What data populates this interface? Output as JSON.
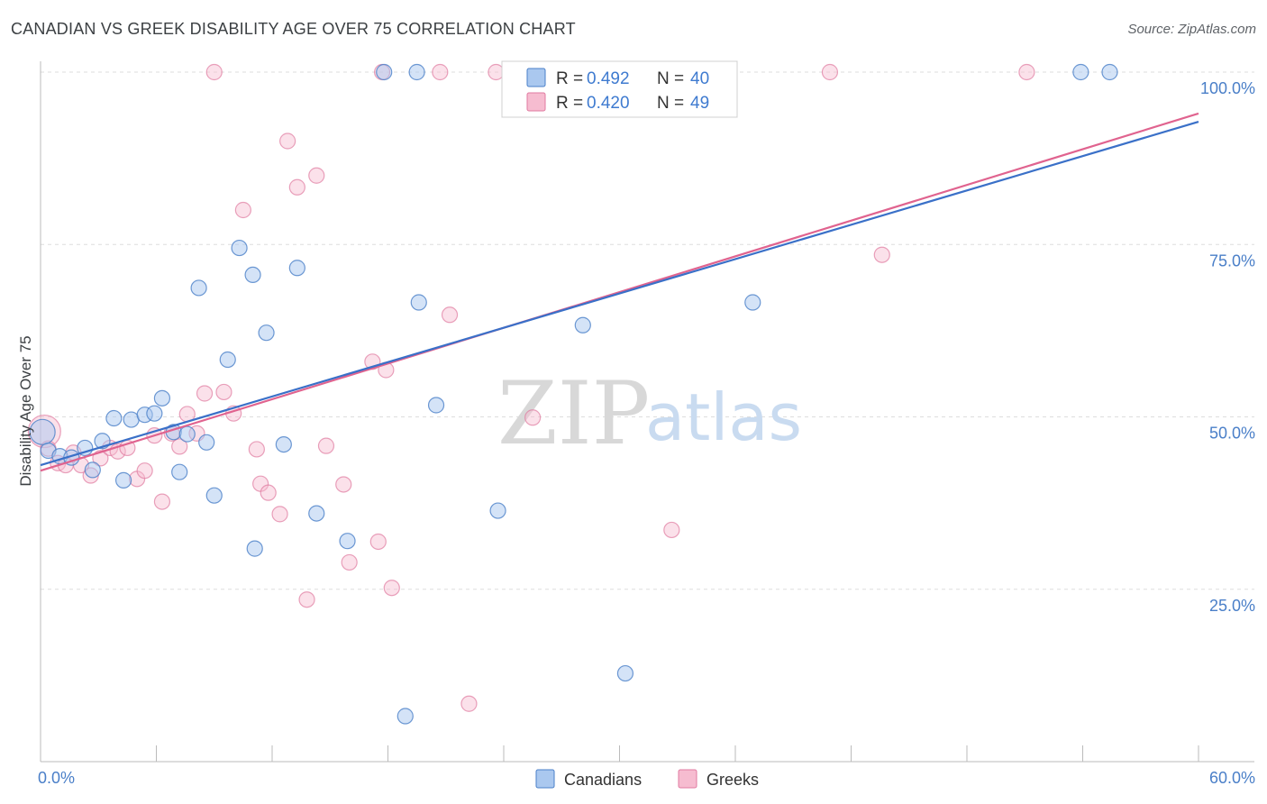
{
  "header": {
    "title": "CANADIAN VS GREEK DISABILITY AGE OVER 75 CORRELATION CHART",
    "source": "Source: ZipAtlas.com"
  },
  "watermark": {
    "zip": "ZIP",
    "atlas": "atlas"
  },
  "legend": {
    "r_label": "R =",
    "n_label": "N =",
    "canadians": {
      "r": "0.492",
      "n": "40"
    },
    "greeks": {
      "r": "0.420",
      "n": "49"
    }
  },
  "colors": {
    "canadians_fill": "#aac8ef",
    "canadians_stroke": "#4a7fc8",
    "canadians_line": "#3a70c8",
    "greeks_fill": "#f6bcd0",
    "greeks_stroke": "#e07aa0",
    "greeks_line": "#e0638f",
    "grid": "#dddddd",
    "tick_label": "#4a7fc8"
  },
  "chart_data": {
    "type": "scatter",
    "title": "CANADIAN VS GREEK DISABILITY AGE OVER 75 CORRELATION CHART",
    "xlabel": "",
    "ylabel": "Disability Age Over 75",
    "xlim": [
      0,
      60
    ],
    "ylim": [
      0,
      100
    ],
    "x_tick_labels": [
      "0.0%",
      "60.0%"
    ],
    "y_ticks": [
      25,
      50,
      75,
      100
    ],
    "y_tick_labels": [
      "25.0%",
      "50.0%",
      "75.0%",
      "100.0%"
    ],
    "grid": true,
    "legend_position": "top-center",
    "series": [
      {
        "name": "Canadians",
        "r": 0.492,
        "n": 40,
        "trend": [
          [
            0,
            43.0
          ],
          [
            60,
            92.8
          ]
        ],
        "points": [
          [
            0.1,
            47.8
          ],
          [
            0.4,
            45.1
          ],
          [
            1.0,
            44.3
          ],
          [
            1.6,
            44.1
          ],
          [
            2.3,
            45.5
          ],
          [
            2.7,
            42.3
          ],
          [
            3.2,
            46.5
          ],
          [
            3.8,
            49.8
          ],
          [
            4.3,
            40.8
          ],
          [
            4.7,
            49.6
          ],
          [
            5.4,
            50.3
          ],
          [
            5.9,
            50.5
          ],
          [
            6.3,
            52.7
          ],
          [
            6.9,
            47.8
          ],
          [
            7.2,
            42.0
          ],
          [
            7.6,
            47.5
          ],
          [
            8.2,
            68.7
          ],
          [
            8.6,
            46.3
          ],
          [
            9.0,
            38.6
          ],
          [
            9.7,
            58.3
          ],
          [
            10.3,
            74.5
          ],
          [
            11.0,
            70.6
          ],
          [
            11.1,
            30.9
          ],
          [
            11.7,
            62.2
          ],
          [
            12.6,
            46.0
          ],
          [
            13.3,
            71.6
          ],
          [
            14.3,
            36.0
          ],
          [
            15.9,
            32.0
          ],
          [
            17.8,
            100.0
          ],
          [
            18.9,
            6.6
          ],
          [
            19.5,
            100.0
          ],
          [
            19.6,
            66.6
          ],
          [
            20.5,
            51.7
          ],
          [
            23.7,
            36.4
          ],
          [
            28.1,
            63.3
          ],
          [
            30.3,
            12.8
          ],
          [
            35.4,
            100.0
          ],
          [
            36.9,
            66.6
          ],
          [
            53.9,
            100.0
          ],
          [
            55.4,
            100.0
          ]
        ]
      },
      {
        "name": "Greeks",
        "r": 0.42,
        "n": 49,
        "trend": [
          [
            0,
            42.2
          ],
          [
            60,
            94.0
          ]
        ],
        "points": [
          [
            0.2,
            47.9
          ],
          [
            0.4,
            45.4
          ],
          [
            0.9,
            43.3
          ],
          [
            1.3,
            43.0
          ],
          [
            1.7,
            44.8
          ],
          [
            2.1,
            43.0
          ],
          [
            2.6,
            41.5
          ],
          [
            3.1,
            44.0
          ],
          [
            3.6,
            45.5
          ],
          [
            4.0,
            45.0
          ],
          [
            4.5,
            45.5
          ],
          [
            5.0,
            41.0
          ],
          [
            5.4,
            42.2
          ],
          [
            5.9,
            47.3
          ],
          [
            6.3,
            37.7
          ],
          [
            6.8,
            47.6
          ],
          [
            7.2,
            45.7
          ],
          [
            7.6,
            50.4
          ],
          [
            8.1,
            47.6
          ],
          [
            8.5,
            53.4
          ],
          [
            9.0,
            100.0
          ],
          [
            9.5,
            53.6
          ],
          [
            10.0,
            50.5
          ],
          [
            10.5,
            80.0
          ],
          [
            11.2,
            45.3
          ],
          [
            11.4,
            40.3
          ],
          [
            11.8,
            39.0
          ],
          [
            12.4,
            35.9
          ],
          [
            12.8,
            90.0
          ],
          [
            13.3,
            83.3
          ],
          [
            13.8,
            23.5
          ],
          [
            14.3,
            85.0
          ],
          [
            14.8,
            45.8
          ],
          [
            15.7,
            40.2
          ],
          [
            16.0,
            28.9
          ],
          [
            17.2,
            58.0
          ],
          [
            17.5,
            31.9
          ],
          [
            17.7,
            100.0
          ],
          [
            17.9,
            56.8
          ],
          [
            18.2,
            25.2
          ],
          [
            20.7,
            100.0
          ],
          [
            21.2,
            64.8
          ],
          [
            22.2,
            8.4
          ],
          [
            23.6,
            100.0
          ],
          [
            25.5,
            49.9
          ],
          [
            32.7,
            33.6
          ],
          [
            40.9,
            100.0
          ],
          [
            43.6,
            73.5
          ],
          [
            51.1,
            100.0
          ]
        ]
      }
    ]
  },
  "bottom_legend": [
    "Canadians",
    "Greeks"
  ]
}
